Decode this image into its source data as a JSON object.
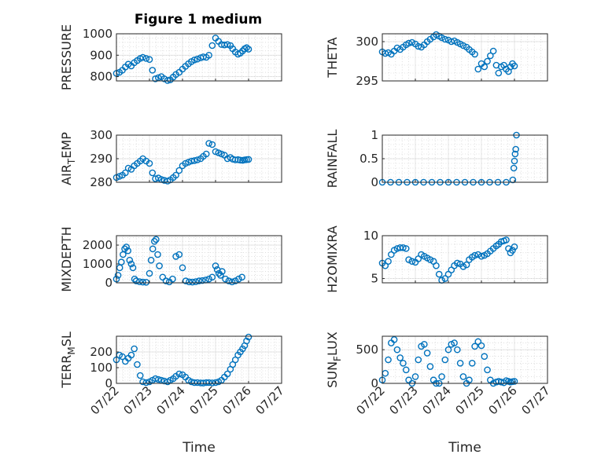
{
  "figure_title": "Figure 1 medium",
  "marker_color": "#0072BD",
  "x_tick_labels": [
    "07/22",
    "07/23",
    "07/24",
    "07/25",
    "07/26",
    "07/27"
  ],
  "chart_data": [
    {
      "type": "scatter",
      "ylabel": "PRESSURE",
      "ylim": [
        780,
        1000
      ],
      "yticks": [
        800,
        900,
        1000
      ],
      "xlabel": "",
      "grid": true,
      "x": [
        0,
        0.09,
        0.18,
        0.27,
        0.36,
        0.45,
        0.54,
        0.63,
        0.72,
        0.8,
        0.9,
        1.0,
        1.09,
        1.18,
        1.27,
        1.36,
        1.45,
        1.55,
        1.63,
        1.72,
        1.8,
        1.9,
        2.0,
        2.09,
        2.18,
        2.27,
        2.36,
        2.45,
        2.55,
        2.63,
        2.72,
        2.8,
        2.9,
        3.0,
        3.09,
        3.18,
        3.27,
        3.36,
        3.45,
        3.52,
        3.6,
        3.68,
        3.75,
        3.82,
        3.88,
        3.94,
        4.0
      ],
      "y": [
        815,
        820,
        830,
        845,
        858,
        850,
        865,
        875,
        885,
        890,
        885,
        880,
        830,
        790,
        795,
        800,
        790,
        782,
        785,
        798,
        810,
        820,
        835,
        848,
        860,
        870,
        878,
        882,
        888,
        892,
        890,
        900,
        945,
        980,
        965,
        950,
        948,
        950,
        945,
        930,
        915,
        905,
        910,
        920,
        930,
        935,
        928
      ]
    },
    {
      "type": "scatter",
      "ylabel": "THETA",
      "ylim": [
        295,
        301
      ],
      "yticks": [
        295,
        300
      ],
      "xlabel": "",
      "grid": true,
      "x": [
        0,
        0.09,
        0.18,
        0.27,
        0.36,
        0.45,
        0.54,
        0.63,
        0.72,
        0.8,
        0.9,
        1.0,
        1.09,
        1.18,
        1.27,
        1.36,
        1.45,
        1.55,
        1.63,
        1.72,
        1.8,
        1.9,
        2.0,
        2.09,
        2.18,
        2.27,
        2.36,
        2.45,
        2.55,
        2.63,
        2.72,
        2.8,
        2.9,
        3.0,
        3.09,
        3.18,
        3.27,
        3.36,
        3.45,
        3.52,
        3.6,
        3.68,
        3.75,
        3.82,
        3.88,
        3.94,
        4.0
      ],
      "y": [
        298.7,
        298.5,
        298.6,
        298.4,
        298.8,
        299.2,
        299.0,
        299.3,
        299.6,
        299.8,
        299.9,
        299.7,
        299.4,
        299.3,
        299.6,
        300.0,
        300.3,
        300.6,
        300.9,
        300.7,
        300.5,
        300.3,
        300.2,
        300.0,
        300.1,
        299.9,
        299.7,
        299.5,
        299.3,
        299.0,
        298.7,
        298.4,
        296.5,
        297.2,
        296.8,
        297.5,
        298.2,
        298.8,
        297.0,
        296.0,
        296.8,
        297.0,
        296.5,
        296.2,
        296.8,
        297.2,
        296.9
      ]
    },
    {
      "type": "scatter",
      "ylabel": "AIR_TEMP",
      "ylim": [
        280,
        300
      ],
      "yticks": [
        280,
        290,
        300
      ],
      "xlabel": "",
      "grid": true,
      "x": [
        0,
        0.09,
        0.18,
        0.27,
        0.36,
        0.45,
        0.54,
        0.63,
        0.72,
        0.8,
        0.9,
        1.0,
        1.09,
        1.18,
        1.27,
        1.36,
        1.45,
        1.55,
        1.63,
        1.72,
        1.8,
        1.9,
        2.0,
        2.09,
        2.18,
        2.27,
        2.36,
        2.45,
        2.55,
        2.63,
        2.72,
        2.8,
        2.9,
        3.0,
        3.09,
        3.18,
        3.27,
        3.36,
        3.45,
        3.52,
        3.6,
        3.68,
        3.75,
        3.82,
        3.88,
        3.94,
        4.0
      ],
      "y": [
        282,
        282.5,
        283,
        284,
        286,
        285.5,
        287,
        288,
        289,
        290,
        289,
        288,
        284,
        281.5,
        281.8,
        281.2,
        280.8,
        280.5,
        281,
        282,
        283,
        285,
        287,
        288,
        288.5,
        289,
        289.2,
        289.5,
        290,
        291,
        292,
        296.5,
        296,
        293,
        292.5,
        292,
        291.5,
        290,
        290.5,
        289.8,
        289.5,
        289.6,
        289.4,
        289.3,
        289.5,
        289.6,
        289.7
      ]
    },
    {
      "type": "scatter",
      "ylabel": "RAINFALL",
      "ylim": [
        0,
        1
      ],
      "yticks": [
        0,
        0.5,
        1
      ],
      "xlabel": "",
      "grid": true,
      "x": [
        0,
        0.25,
        0.5,
        0.75,
        1.0,
        1.25,
        1.5,
        1.75,
        2.0,
        2.25,
        2.5,
        2.75,
        3.0,
        3.25,
        3.5,
        3.75,
        3.95,
        3.98,
        4.0,
        4.02,
        4.04,
        4.06
      ],
      "y": [
        0,
        0,
        0,
        0,
        0,
        0,
        0,
        0,
        0,
        0,
        0,
        0,
        0,
        0,
        0,
        0,
        0.05,
        0.3,
        0.45,
        0.6,
        0.7,
        1.0
      ]
    },
    {
      "type": "scatter",
      "ylabel": "MIXDEPTH",
      "ylim": [
        0,
        2500
      ],
      "yticks": [
        0,
        1000,
        2000
      ],
      "xlabel": "",
      "grid": true,
      "x": [
        0,
        0.05,
        0.1,
        0.15,
        0.2,
        0.25,
        0.3,
        0.35,
        0.4,
        0.45,
        0.5,
        0.55,
        0.6,
        0.7,
        0.8,
        0.9,
        1.0,
        1.05,
        1.1,
        1.15,
        1.2,
        1.25,
        1.3,
        1.4,
        1.5,
        1.6,
        1.7,
        1.8,
        1.9,
        2.0,
        2.1,
        2.2,
        2.3,
        2.4,
        2.5,
        2.6,
        2.7,
        2.8,
        2.9,
        3.0,
        3.05,
        3.1,
        3.15,
        3.2,
        3.3,
        3.4,
        3.5,
        3.6,
        3.7,
        3.8
      ],
      "y": [
        200,
        400,
        800,
        1100,
        1500,
        1800,
        1900,
        1700,
        1200,
        1000,
        800,
        200,
        100,
        60,
        40,
        30,
        500,
        1200,
        1800,
        2200,
        2300,
        1500,
        900,
        300,
        100,
        50,
        200,
        1400,
        1500,
        800,
        100,
        50,
        40,
        60,
        100,
        120,
        150,
        200,
        300,
        900,
        700,
        500,
        400,
        600,
        200,
        100,
        50,
        100,
        200,
        300
      ]
    },
    {
      "type": "scatter",
      "ylabel": "H2OMIXRA",
      "ylim": [
        4.5,
        10
      ],
      "yticks": [
        5,
        10
      ],
      "xlabel": "",
      "grid": true,
      "x": [
        0,
        0.09,
        0.18,
        0.27,
        0.36,
        0.45,
        0.54,
        0.63,
        0.72,
        0.8,
        0.9,
        1.0,
        1.09,
        1.18,
        1.27,
        1.36,
        1.45,
        1.55,
        1.63,
        1.72,
        1.8,
        1.9,
        2.0,
        2.09,
        2.18,
        2.27,
        2.36,
        2.45,
        2.55,
        2.63,
        2.72,
        2.8,
        2.9,
        3.0,
        3.09,
        3.18,
        3.27,
        3.36,
        3.45,
        3.52,
        3.6,
        3.68,
        3.75,
        3.82,
        3.88,
        3.94,
        4.0
      ],
      "y": [
        6.8,
        6.5,
        7.0,
        7.8,
        8.3,
        8.5,
        8.6,
        8.6,
        8.5,
        7.2,
        7.0,
        6.9,
        7.3,
        7.8,
        7.6,
        7.4,
        7.2,
        7.0,
        6.5,
        5.5,
        4.8,
        5.0,
        5.5,
        6.0,
        6.5,
        6.8,
        6.7,
        6.4,
        6.6,
        7.2,
        7.5,
        7.7,
        7.8,
        7.6,
        7.7,
        7.9,
        8.2,
        8.5,
        8.8,
        9.0,
        9.3,
        9.4,
        9.5,
        8.5,
        8.0,
        8.3,
        8.7
      ]
    },
    {
      "type": "scatter",
      "ylabel": "TERR_MSL",
      "ylim": [
        0,
        300
      ],
      "yticks": [
        0,
        100,
        200
      ],
      "xlabel": "Time",
      "grid": true,
      "x": [
        0,
        0.09,
        0.18,
        0.27,
        0.36,
        0.45,
        0.54,
        0.63,
        0.72,
        0.8,
        0.9,
        1.0,
        1.09,
        1.18,
        1.27,
        1.36,
        1.45,
        1.55,
        1.63,
        1.72,
        1.8,
        1.9,
        2.0,
        2.09,
        2.18,
        2.27,
        2.36,
        2.45,
        2.55,
        2.63,
        2.72,
        2.8,
        2.9,
        3.0,
        3.09,
        3.18,
        3.27,
        3.36,
        3.45,
        3.52,
        3.6,
        3.68,
        3.75,
        3.82,
        3.88,
        3.94,
        4.0
      ],
      "y": [
        150,
        180,
        170,
        140,
        160,
        180,
        220,
        120,
        50,
        10,
        5,
        10,
        20,
        30,
        25,
        20,
        15,
        10,
        20,
        30,
        45,
        60,
        55,
        40,
        20,
        10,
        5,
        5,
        3,
        2,
        5,
        5,
        3,
        5,
        10,
        20,
        40,
        60,
        90,
        120,
        150,
        180,
        200,
        220,
        240,
        270,
        295
      ]
    },
    {
      "type": "scatter",
      "ylabel": "SUN_FLUX",
      "ylim": [
        0,
        700
      ],
      "yticks": [
        0,
        500
      ],
      "xlabel": "Time",
      "grid": true,
      "x": [
        0,
        0.09,
        0.18,
        0.27,
        0.36,
        0.45,
        0.54,
        0.63,
        0.72,
        0.8,
        0.9,
        1.0,
        1.09,
        1.18,
        1.27,
        1.36,
        1.45,
        1.55,
        1.63,
        1.72,
        1.8,
        1.9,
        2.0,
        2.09,
        2.18,
        2.27,
        2.36,
        2.45,
        2.55,
        2.63,
        2.72,
        2.8,
        2.9,
        3.0,
        3.09,
        3.18,
        3.27,
        3.36,
        3.45,
        3.52,
        3.6,
        3.68,
        3.75,
        3.82,
        3.88,
        3.94,
        4.0
      ],
      "y": [
        50,
        150,
        350,
        600,
        650,
        500,
        380,
        300,
        200,
        50,
        0,
        100,
        350,
        550,
        580,
        450,
        250,
        50,
        0,
        0,
        100,
        350,
        500,
        580,
        600,
        500,
        300,
        100,
        0,
        50,
        300,
        550,
        620,
        560,
        400,
        200,
        50,
        0,
        20,
        30,
        20,
        10,
        40,
        30,
        20,
        25,
        30
      ]
    }
  ]
}
